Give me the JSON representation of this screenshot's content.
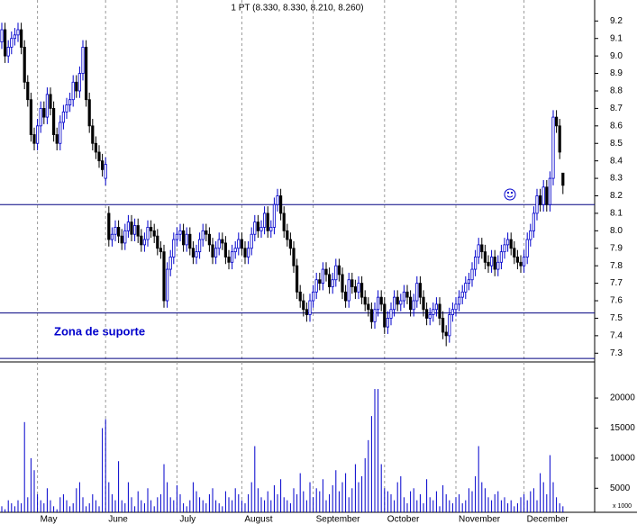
{
  "chart_data": {
    "type": "candlestick",
    "title": "1 PT (8.330, 8.330, 8.210, 8.260)",
    "annotation": "Zona de suporte",
    "categories": [
      null,
      null,
      null,
      null,
      null,
      null,
      null,
      null,
      null,
      null,
      null,
      "May",
      null,
      null,
      null,
      null,
      null,
      null,
      null,
      null,
      null,
      null,
      null,
      null,
      null,
      null,
      null,
      null,
      null,
      null,
      null,
      null,
      "June",
      null,
      null,
      null,
      null,
      null,
      null,
      null,
      null,
      null,
      null,
      null,
      null,
      null,
      null,
      null,
      null,
      null,
      null,
      null,
      null,
      null,
      "July",
      null,
      null,
      null,
      null,
      null,
      null,
      null,
      null,
      null,
      null,
      null,
      null,
      null,
      null,
      null,
      null,
      null,
      null,
      null,
      "August",
      null,
      null,
      null,
      null,
      null,
      null,
      null,
      null,
      null,
      null,
      null,
      null,
      null,
      null,
      null,
      null,
      null,
      null,
      null,
      null,
      null,
      "September",
      null,
      null,
      null,
      null,
      null,
      null,
      null,
      null,
      null,
      null,
      null,
      null,
      null,
      null,
      null,
      null,
      null,
      null,
      null,
      null,
      null,
      "October",
      null,
      null,
      null,
      null,
      null,
      null,
      null,
      null,
      null,
      null,
      null,
      null,
      null,
      null,
      null,
      null,
      null,
      null,
      null,
      null,
      null,
      "November",
      null,
      null,
      null,
      null,
      null,
      null,
      null,
      null,
      null,
      null,
      null,
      null,
      null,
      null,
      null,
      null,
      null,
      null,
      null,
      null,
      "December",
      null,
      null,
      null,
      null,
      null,
      null,
      null,
      null,
      null,
      null,
      null,
      null
    ],
    "open": [
      9.08,
      9.15,
      9.0,
      9.05,
      9.1,
      9.12,
      9.15,
      9.05,
      8.85,
      8.75,
      8.55,
      8.5,
      8.6,
      8.7,
      8.65,
      8.78,
      8.7,
      8.55,
      8.5,
      8.62,
      8.68,
      8.72,
      8.75,
      8.85,
      8.8,
      8.9,
      9.05,
      8.75,
      8.6,
      8.5,
      8.45,
      8.4,
      8.3,
      8.1,
      7.95,
      7.98,
      8.02,
      7.97,
      7.93,
      8.0,
      8.05,
      7.98,
      8.03,
      7.97,
      7.92,
      7.95,
      8.02,
      8.0,
      7.97,
      7.9,
      7.88,
      7.6,
      7.78,
      7.85,
      7.95,
      7.98,
      8.0,
      7.92,
      7.98,
      7.9,
      7.85,
      7.88,
      7.95,
      8.0,
      7.98,
      7.92,
      7.85,
      7.9,
      7.95,
      7.93,
      7.85,
      7.82,
      7.88,
      7.9,
      7.95,
      7.9,
      7.85,
      7.9,
      7.98,
      8.05,
      8.0,
      8.02,
      8.1,
      8.0,
      8.02,
      8.15,
      8.2,
      8.1,
      8.0,
      7.95,
      7.9,
      7.8,
      7.65,
      7.6,
      7.55,
      7.52,
      7.6,
      7.65,
      7.72,
      7.7,
      7.78,
      7.75,
      7.68,
      7.72,
      7.8,
      7.75,
      7.65,
      7.6,
      7.72,
      7.68,
      7.65,
      7.7,
      7.62,
      7.58,
      7.55,
      7.48,
      7.55,
      7.62,
      7.58,
      7.45,
      7.5,
      7.55,
      7.62,
      7.58,
      7.6,
      7.65,
      7.62,
      7.55,
      7.6,
      7.7,
      7.62,
      7.55,
      7.5,
      7.52,
      7.55,
      7.58,
      7.5,
      7.42,
      7.4,
      7.52,
      7.55,
      7.58,
      7.62,
      7.65,
      7.7,
      7.72,
      7.78,
      7.85,
      7.92,
      7.88,
      7.82,
      7.8,
      7.85,
      7.78,
      7.82,
      7.88,
      7.92,
      7.95,
      7.9,
      7.85,
      7.82,
      7.8,
      7.85,
      7.95,
      8.0,
      8.1,
      8.2,
      8.15,
      8.25,
      8.15,
      8.3,
      8.65,
      8.6,
      8.33
    ],
    "high": [
      9.19,
      9.19,
      9.09,
      9.14,
      9.16,
      9.19,
      9.19,
      9.09,
      8.89,
      8.79,
      8.59,
      8.64,
      8.74,
      8.74,
      8.82,
      8.82,
      8.74,
      8.59,
      8.66,
      8.72,
      8.76,
      8.79,
      8.89,
      8.89,
      8.94,
      9.09,
      9.09,
      8.79,
      8.64,
      8.54,
      8.49,
      8.44,
      8.42,
      8.14,
      8.02,
      8.06,
      8.06,
      8.01,
      8.04,
      8.09,
      8.09,
      8.07,
      8.07,
      8.01,
      7.99,
      8.06,
      8.06,
      8.04,
      8.01,
      7.94,
      7.92,
      7.82,
      7.89,
      7.99,
      8.02,
      8.04,
      8.04,
      8.02,
      8.02,
      7.94,
      7.92,
      7.99,
      8.04,
      8.04,
      8.02,
      7.96,
      7.94,
      7.99,
      7.99,
      7.97,
      7.89,
      7.92,
      7.94,
      7.99,
      7.99,
      7.94,
      7.94,
      8.02,
      8.09,
      8.09,
      8.06,
      8.14,
      8.14,
      8.06,
      8.19,
      8.24,
      8.24,
      8.14,
      8.04,
      7.99,
      7.94,
      7.84,
      7.69,
      7.64,
      7.59,
      7.64,
      7.69,
      7.76,
      7.76,
      7.82,
      7.82,
      7.79,
      7.76,
      7.84,
      7.84,
      7.79,
      7.69,
      7.76,
      7.76,
      7.72,
      7.74,
      7.74,
      7.66,
      7.62,
      7.59,
      7.59,
      7.66,
      7.66,
      7.62,
      7.54,
      7.59,
      7.66,
      7.66,
      7.64,
      7.69,
      7.69,
      7.66,
      7.64,
      7.74,
      7.74,
      7.66,
      7.59,
      7.56,
      7.59,
      7.62,
      7.62,
      7.54,
      7.46,
      7.56,
      7.59,
      7.62,
      7.66,
      7.69,
      7.74,
      7.76,
      7.82,
      7.89,
      7.96,
      7.96,
      7.92,
      7.86,
      7.89,
      7.89,
      7.86,
      7.92,
      7.96,
      7.99,
      7.99,
      7.94,
      7.89,
      7.86,
      7.89,
      7.99,
      8.04,
      8.14,
      8.24,
      8.24,
      8.29,
      8.29,
      8.34,
      8.69,
      8.69,
      8.64,
      8.33
    ],
    "low": [
      9.04,
      8.96,
      8.96,
      9.01,
      9.06,
      9.08,
      9.01,
      8.81,
      8.71,
      8.51,
      8.46,
      8.46,
      8.56,
      8.61,
      8.61,
      8.66,
      8.51,
      8.46,
      8.46,
      8.58,
      8.64,
      8.68,
      8.71,
      8.76,
      8.76,
      8.86,
      8.71,
      8.56,
      8.46,
      8.41,
      8.36,
      8.31,
      8.26,
      7.91,
      7.91,
      7.94,
      7.93,
      7.89,
      7.89,
      7.96,
      7.94,
      7.94,
      7.93,
      7.88,
      7.88,
      7.91,
      7.96,
      7.93,
      7.86,
      7.84,
      7.56,
      7.56,
      7.74,
      7.81,
      7.91,
      7.94,
      7.88,
      7.88,
      7.86,
      7.81,
      7.81,
      7.84,
      7.91,
      7.94,
      7.88,
      7.81,
      7.81,
      7.86,
      7.89,
      7.81,
      7.78,
      7.78,
      7.84,
      7.86,
      7.86,
      7.81,
      7.81,
      7.86,
      7.94,
      7.96,
      7.96,
      7.98,
      7.96,
      7.96,
      7.98,
      8.11,
      8.06,
      7.96,
      7.91,
      7.86,
      7.76,
      7.61,
      7.56,
      7.51,
      7.48,
      7.48,
      7.56,
      7.61,
      7.66,
      7.66,
      7.71,
      7.64,
      7.64,
      7.68,
      7.71,
      7.61,
      7.56,
      7.56,
      7.64,
      7.61,
      7.61,
      7.58,
      7.54,
      7.51,
      7.44,
      7.44,
      7.51,
      7.54,
      7.41,
      7.41,
      7.46,
      7.51,
      7.54,
      7.54,
      7.56,
      7.58,
      7.51,
      7.51,
      7.56,
      7.58,
      7.51,
      7.46,
      7.46,
      7.48,
      7.51,
      7.46,
      7.38,
      7.34,
      7.36,
      7.48,
      7.51,
      7.54,
      7.58,
      7.61,
      7.66,
      7.68,
      7.74,
      7.81,
      7.84,
      7.78,
      7.76,
      7.76,
      7.74,
      7.74,
      7.78,
      7.84,
      7.88,
      7.86,
      7.81,
      7.78,
      7.76,
      7.76,
      7.81,
      7.91,
      7.96,
      8.06,
      8.11,
      8.11,
      8.11,
      8.11,
      8.26,
      8.56,
      8.41,
      8.21
    ],
    "close": [
      9.15,
      9.0,
      9.05,
      9.1,
      9.12,
      9.15,
      9.05,
      8.85,
      8.75,
      8.55,
      8.5,
      8.6,
      8.7,
      8.65,
      8.78,
      8.7,
      8.55,
      8.5,
      8.62,
      8.68,
      8.72,
      8.75,
      8.85,
      8.8,
      8.9,
      9.05,
      8.75,
      8.6,
      8.5,
      8.45,
      8.4,
      8.35,
      8.38,
      7.95,
      7.98,
      8.02,
      7.97,
      7.93,
      8.0,
      8.05,
      7.98,
      8.03,
      7.97,
      7.92,
      7.95,
      8.02,
      8.0,
      7.97,
      7.9,
      7.88,
      7.6,
      7.78,
      7.85,
      7.95,
      7.98,
      8.0,
      7.92,
      7.98,
      7.9,
      7.85,
      7.88,
      7.95,
      8.0,
      7.98,
      7.92,
      7.85,
      7.9,
      7.95,
      7.93,
      7.85,
      7.82,
      7.88,
      7.9,
      7.95,
      7.9,
      7.85,
      7.9,
      7.98,
      8.05,
      8.0,
      8.02,
      8.1,
      8.0,
      8.02,
      8.15,
      8.2,
      8.1,
      8.0,
      7.95,
      7.9,
      7.8,
      7.65,
      7.6,
      7.55,
      7.52,
      7.6,
      7.65,
      7.72,
      7.7,
      7.78,
      7.75,
      7.68,
      7.72,
      7.8,
      7.75,
      7.65,
      7.6,
      7.72,
      7.68,
      7.65,
      7.7,
      7.62,
      7.58,
      7.55,
      7.48,
      7.55,
      7.62,
      7.58,
      7.45,
      7.5,
      7.55,
      7.62,
      7.58,
      7.6,
      7.65,
      7.62,
      7.55,
      7.6,
      7.7,
      7.62,
      7.55,
      7.5,
      7.52,
      7.55,
      7.58,
      7.5,
      7.42,
      7.4,
      7.52,
      7.55,
      7.58,
      7.62,
      7.65,
      7.7,
      7.72,
      7.78,
      7.85,
      7.92,
      7.88,
      7.82,
      7.8,
      7.85,
      7.78,
      7.82,
      7.88,
      7.92,
      7.95,
      7.9,
      7.85,
      7.82,
      7.8,
      7.85,
      7.95,
      8.0,
      8.1,
      8.2,
      8.15,
      8.25,
      8.15,
      8.3,
      8.65,
      8.6,
      8.45,
      8.26
    ],
    "up_color": "#0000cc",
    "down_color": "#000000",
    "ylim": [
      7.25,
      9.32
    ],
    "yticks": [
      7.3,
      7.4,
      7.5,
      7.6,
      7.7,
      7.8,
      7.9,
      {
        "value": 8,
        "label": "8.0"
      },
      8.1,
      8.2,
      8.3,
      8.4,
      8.5,
      8.6,
      8.7,
      8.8,
      8.9,
      {
        "value": 9,
        "label": "9.0"
      },
      9.1,
      9.2
    ],
    "hlines": [
      8.15,
      7.53,
      7.27
    ],
    "hline_color": "#000080",
    "volume": {
      "label": "x 1000",
      "color": "#0000cc",
      "ylim": [
        1000,
        26000
      ],
      "yticks": [
        5000,
        10000,
        15000,
        20000
      ],
      "values": [
        2000,
        1500,
        3000,
        2500,
        2000,
        3000,
        2500,
        16000,
        3500,
        10000,
        8000,
        4000,
        3000,
        2500,
        5000,
        3000,
        2000,
        1500,
        3500,
        4000,
        3000,
        2000,
        2500,
        5000,
        6000,
        3500,
        2000,
        2500,
        4000,
        3000,
        2000,
        15000,
        16500,
        6000,
        4000,
        3000,
        9500,
        3000,
        2500,
        6000,
        3500,
        2000,
        4500,
        3000,
        2500,
        5000,
        3000,
        2000,
        3500,
        4000,
        9000,
        6000,
        3500,
        3000,
        5500,
        4000,
        2500,
        2000,
        3000,
        6000,
        4500,
        3500,
        3000,
        2500,
        4000,
        5000,
        3000,
        2500,
        2000,
        4500,
        3500,
        3000,
        5000,
        4000,
        3000,
        2500,
        4000,
        6000,
        12000,
        5000,
        3500,
        3000,
        4500,
        3000,
        5500,
        4000,
        6500,
        3500,
        3000,
        2500,
        5000,
        4000,
        7500,
        4500,
        3000,
        6000,
        3500,
        5000,
        4500,
        6500,
        3000,
        4000,
        5500,
        8000,
        4500,
        6000,
        7500,
        3500,
        5000,
        9000,
        6000,
        7000,
        10000,
        13000,
        17000,
        21500,
        21500,
        9000,
        5000,
        4500,
        4000,
        3000,
        6000,
        7000,
        3500,
        2500,
        4500,
        5000,
        3000,
        4000,
        2500,
        6500,
        3500,
        3000,
        4500,
        2000,
        5500,
        4000,
        3000,
        2500,
        3500,
        4000,
        2500,
        3000,
        5000,
        4500,
        7000,
        12000,
        6000,
        5000,
        3500,
        3000,
        4000,
        4500,
        3000,
        3500,
        2500,
        3000,
        2000,
        2500,
        3500,
        4000,
        3000,
        4500,
        5000,
        3000,
        7500,
        6000,
        4000,
        10500,
        6000,
        3500,
        2500,
        2000
      ]
    }
  }
}
